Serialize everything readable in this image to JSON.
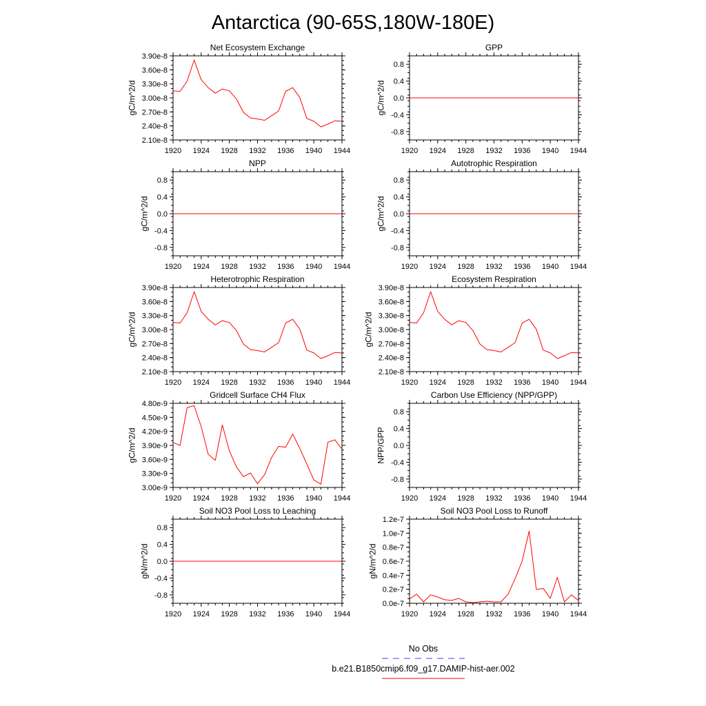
{
  "main_title": "Antarctica (90-65S,180W-180E)",
  "colors": {
    "model_line": "#ff0000",
    "obs_line": "#4040ff",
    "axes": "#000000"
  },
  "legend": {
    "obs_label": "No Obs",
    "model_label": "b.e21.B1850cmip6.f09_g17.DAMIP-hist-aer.002"
  },
  "chart_data": [
    {
      "type": "line",
      "title": "Net Ecosystem Exchange",
      "ylabel": "gC/m^2/d",
      "xlim": [
        1920,
        1944
      ],
      "ylim": [
        2.1e-08,
        3.9e-08
      ],
      "xticks": [
        1920,
        1924,
        1928,
        1932,
        1936,
        1940,
        1944
      ],
      "yticks": [
        2.1e-08,
        2.4e-08,
        2.7e-08,
        3e-08,
        3.3e-08,
        3.6e-08,
        3.9e-08
      ],
      "ytick_labels": [
        "2.10e-8",
        "2.40e-8",
        "2.70e-8",
        "3.00e-8",
        "3.30e-8",
        "3.60e-8",
        "3.90e-8"
      ],
      "x": [
        1920,
        1921,
        1922,
        1923,
        1924,
        1925,
        1926,
        1927,
        1928,
        1929,
        1930,
        1931,
        1932,
        1933,
        1934,
        1935,
        1936,
        1937,
        1938,
        1939,
        1940,
        1941,
        1942,
        1943,
        1944
      ],
      "values": [
        3.15e-08,
        3.14e-08,
        3.36e-08,
        3.81e-08,
        3.39e-08,
        3.22e-08,
        3.1e-08,
        3.19e-08,
        3.15e-08,
        2.98e-08,
        2.69e-08,
        2.57e-08,
        2.55e-08,
        2.52e-08,
        2.62e-08,
        2.72e-08,
        3.14e-08,
        3.22e-08,
        3.01e-08,
        2.56e-08,
        2.5e-08,
        2.38e-08,
        2.44e-08,
        2.51e-08,
        2.5e-08
      ]
    },
    {
      "type": "line",
      "title": "GPP",
      "ylabel": "gC/m^2/d",
      "xlim": [
        1920,
        1944
      ],
      "ylim": [
        -1.0,
        1.0
      ],
      "xticks": [
        1920,
        1924,
        1928,
        1932,
        1936,
        1940,
        1944
      ],
      "yticks": [
        -0.8,
        -0.4,
        0.0,
        0.4,
        0.8
      ],
      "ytick_labels": [
        "-0.8",
        "-0.4",
        "0.0",
        "0.4",
        "0.8"
      ],
      "x": [
        1920,
        1944
      ],
      "values": [
        0.0,
        0.0
      ]
    },
    {
      "type": "line",
      "title": "NPP",
      "ylabel": "gC/m^2/d",
      "xlim": [
        1920,
        1944
      ],
      "ylim": [
        -1.0,
        1.0
      ],
      "xticks": [
        1920,
        1924,
        1928,
        1932,
        1936,
        1940,
        1944
      ],
      "yticks": [
        -0.8,
        -0.4,
        0.0,
        0.4,
        0.8
      ],
      "ytick_labels": [
        "-0.8",
        "-0.4",
        "0.0",
        "0.4",
        "0.8"
      ],
      "x": [
        1920,
        1944
      ],
      "values": [
        0.0,
        0.0
      ]
    },
    {
      "type": "line",
      "title": "Autotrophic Respiration",
      "ylabel": "gC/m^2/d",
      "xlim": [
        1920,
        1944
      ],
      "ylim": [
        -1.0,
        1.0
      ],
      "xticks": [
        1920,
        1924,
        1928,
        1932,
        1936,
        1940,
        1944
      ],
      "yticks": [
        -0.8,
        -0.4,
        0.0,
        0.4,
        0.8
      ],
      "ytick_labels": [
        "-0.8",
        "-0.4",
        "0.0",
        "0.4",
        "0.8"
      ],
      "x": [
        1920,
        1944
      ],
      "values": [
        0.0,
        0.0
      ]
    },
    {
      "type": "line",
      "title": "Heterotrophic Respiration",
      "ylabel": "gC/m^2/d",
      "xlim": [
        1920,
        1944
      ],
      "ylim": [
        2.1e-08,
        3.9e-08
      ],
      "xticks": [
        1920,
        1924,
        1928,
        1932,
        1936,
        1940,
        1944
      ],
      "yticks": [
        2.1e-08,
        2.4e-08,
        2.7e-08,
        3e-08,
        3.3e-08,
        3.6e-08,
        3.9e-08
      ],
      "ytick_labels": [
        "2.10e-8",
        "2.40e-8",
        "2.70e-8",
        "3.00e-8",
        "3.30e-8",
        "3.60e-8",
        "3.90e-8"
      ],
      "x": [
        1920,
        1921,
        1922,
        1923,
        1924,
        1925,
        1926,
        1927,
        1928,
        1929,
        1930,
        1931,
        1932,
        1933,
        1934,
        1935,
        1936,
        1937,
        1938,
        1939,
        1940,
        1941,
        1942,
        1943,
        1944
      ],
      "values": [
        3.15e-08,
        3.14e-08,
        3.36e-08,
        3.81e-08,
        3.39e-08,
        3.22e-08,
        3.1e-08,
        3.19e-08,
        3.15e-08,
        2.98e-08,
        2.69e-08,
        2.57e-08,
        2.55e-08,
        2.52e-08,
        2.62e-08,
        2.72e-08,
        3.14e-08,
        3.22e-08,
        3.01e-08,
        2.56e-08,
        2.5e-08,
        2.38e-08,
        2.44e-08,
        2.51e-08,
        2.5e-08
      ]
    },
    {
      "type": "line",
      "title": "Ecosystem Respiration",
      "ylabel": "gC/m^2/d",
      "xlim": [
        1920,
        1944
      ],
      "ylim": [
        2.1e-08,
        3.9e-08
      ],
      "xticks": [
        1920,
        1924,
        1928,
        1932,
        1936,
        1940,
        1944
      ],
      "yticks": [
        2.1e-08,
        2.4e-08,
        2.7e-08,
        3e-08,
        3.3e-08,
        3.6e-08,
        3.9e-08
      ],
      "ytick_labels": [
        "2.10e-8",
        "2.40e-8",
        "2.70e-8",
        "3.00e-8",
        "3.30e-8",
        "3.60e-8",
        "3.90e-8"
      ],
      "x": [
        1920,
        1921,
        1922,
        1923,
        1924,
        1925,
        1926,
        1927,
        1928,
        1929,
        1930,
        1931,
        1932,
        1933,
        1934,
        1935,
        1936,
        1937,
        1938,
        1939,
        1940,
        1941,
        1942,
        1943,
        1944
      ],
      "values": [
        3.15e-08,
        3.14e-08,
        3.36e-08,
        3.81e-08,
        3.39e-08,
        3.22e-08,
        3.1e-08,
        3.19e-08,
        3.15e-08,
        2.98e-08,
        2.69e-08,
        2.57e-08,
        2.55e-08,
        2.52e-08,
        2.62e-08,
        2.72e-08,
        3.14e-08,
        3.22e-08,
        3.01e-08,
        2.56e-08,
        2.5e-08,
        2.38e-08,
        2.44e-08,
        2.51e-08,
        2.5e-08
      ]
    },
    {
      "type": "line",
      "title": "Gridcell Surface CH4 Flux",
      "ylabel": "gC/m^2/d",
      "xlim": [
        1920,
        1944
      ],
      "ylim": [
        3e-09,
        4.8e-09
      ],
      "xticks": [
        1920,
        1924,
        1928,
        1932,
        1936,
        1940,
        1944
      ],
      "yticks": [
        3e-09,
        3.3e-09,
        3.6e-09,
        3.9e-09,
        4.2e-09,
        4.5e-09,
        4.8e-09
      ],
      "ytick_labels": [
        "3.00e-9",
        "3.30e-9",
        "3.60e-9",
        "3.90e-9",
        "4.20e-9",
        "4.50e-9",
        "4.80e-9"
      ],
      "x": [
        1920,
        1921,
        1922,
        1923,
        1924,
        1925,
        1926,
        1927,
        1928,
        1929,
        1930,
        1931,
        1932,
        1933,
        1934,
        1935,
        1936,
        1937,
        1938,
        1939,
        1940,
        1941,
        1942,
        1943,
        1944
      ],
      "values": [
        3.96e-09,
        3.9e-09,
        4.71e-09,
        4.75e-09,
        4.3e-09,
        3.71e-09,
        3.58e-09,
        4.34e-09,
        3.78e-09,
        3.44e-09,
        3.23e-09,
        3.31e-09,
        3.08e-09,
        3.27e-09,
        3.64e-09,
        3.88e-09,
        3.86e-09,
        4.14e-09,
        3.84e-09,
        3.5e-09,
        3.16e-09,
        3.07e-09,
        3.97e-09,
        4.02e-09,
        3.82e-09
      ]
    },
    {
      "type": "line",
      "title": "Carbon Use Efficiency (NPP/GPP)",
      "ylabel": "NPP/GPP",
      "xlim": [
        1920,
        1944
      ],
      "ylim": [
        -1.0,
        1.0
      ],
      "xticks": [
        1920,
        1924,
        1928,
        1932,
        1936,
        1940,
        1944
      ],
      "yticks": [
        -0.8,
        -0.4,
        0.0,
        0.4,
        0.8
      ],
      "ytick_labels": [
        "-0.8",
        "-0.4",
        "0.0",
        "0.4",
        "0.8"
      ],
      "x": [],
      "values": []
    },
    {
      "type": "line",
      "title": "Soil NO3 Pool Loss to Leaching",
      "ylabel": "gN/m^2/d",
      "xlim": [
        1920,
        1944
      ],
      "ylim": [
        -1.0,
        1.0
      ],
      "xticks": [
        1920,
        1924,
        1928,
        1932,
        1936,
        1940,
        1944
      ],
      "yticks": [
        -0.8,
        -0.4,
        0.0,
        0.4,
        0.8
      ],
      "ytick_labels": [
        "-0.8",
        "-0.4",
        "0.0",
        "0.4",
        "0.8"
      ],
      "x": [
        1920,
        1944
      ],
      "values": [
        0.0,
        0.0
      ]
    },
    {
      "type": "line",
      "title": "Soil NO3 Pool Loss to Runoff",
      "ylabel": "gN/m^2/d",
      "xlim": [
        1920,
        1944
      ],
      "ylim": [
        0.0,
        1.2e-07
      ],
      "xticks": [
        1920,
        1924,
        1928,
        1932,
        1936,
        1940,
        1944
      ],
      "yticks": [
        0.0,
        2e-08,
        4e-08,
        6e-08,
        8e-08,
        1e-07,
        1.2e-07
      ],
      "ytick_labels": [
        "0.0e-7",
        "0.2e-7",
        "0.4e-7",
        "0.6e-7",
        "0.8e-7",
        "1.0e-7",
        "1.2e-7"
      ],
      "x": [
        1920,
        1921,
        1922,
        1923,
        1924,
        1925,
        1926,
        1927,
        1928,
        1929,
        1930,
        1931,
        1932,
        1933,
        1934,
        1935,
        1936,
        1937,
        1938,
        1939,
        1940,
        1941,
        1942,
        1943,
        1944
      ],
      "values": [
        6e-09,
        1.3e-08,
        2e-09,
        1.2e-08,
        9e-09,
        5e-09,
        4e-09,
        7e-09,
        2e-09,
        1e-09,
        2e-09,
        3e-09,
        2e-09,
        2e-09,
        1.3e-08,
        3.5e-08,
        6e-08,
        1.03e-07,
        2e-08,
        2.1e-08,
        7e-09,
        3.7e-08,
        2e-09,
        1.2e-08,
        4e-09
      ]
    }
  ]
}
